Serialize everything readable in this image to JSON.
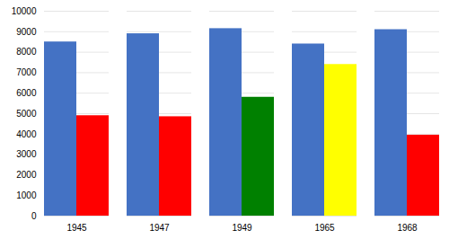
{
  "chart_data": {
    "type": "bar",
    "categories": [
      "1945",
      "1947",
      "1949",
      "1965",
      "1968"
    ],
    "series": [
      {
        "color": "#4472C4",
        "values": [
          8500,
          8900,
          9150,
          8400,
          9100
        ]
      },
      {
        "colors": [
          "#FF0000",
          "#FF0000",
          "#008000",
          "#FFFF00",
          "#FF0000"
        ],
        "values": [
          4900,
          4850,
          5800,
          7400,
          3950
        ]
      }
    ],
    "ylim": [
      0,
      10000
    ],
    "yticks": [
      0,
      1000,
      2000,
      3000,
      4000,
      5000,
      6000,
      7000,
      8000,
      9000,
      10000
    ],
    "grid": true
  }
}
